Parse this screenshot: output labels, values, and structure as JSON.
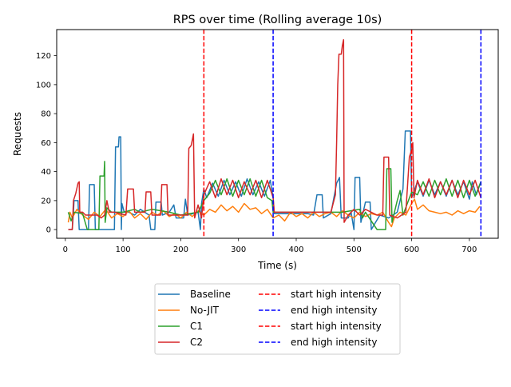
{
  "chart_data": {
    "type": "line",
    "title": "RPS over time (Rolling average 10s)",
    "xlabel": "Time (s)",
    "ylabel": "Requests",
    "xlim": [
      -15,
      750
    ],
    "ylim": [
      -6,
      138
    ],
    "xticks": [
      0,
      100,
      200,
      300,
      400,
      500,
      600,
      700
    ],
    "yticks": [
      0,
      20,
      40,
      60,
      80,
      100,
      120
    ],
    "grid": false,
    "legend": {
      "placement": "below",
      "columns": 2
    },
    "series": [
      {
        "name": "Baseline",
        "color": "#1f77b4",
        "points": [
          [
            5,
            0
          ],
          [
            12,
            0
          ],
          [
            14,
            12
          ],
          [
            15,
            20
          ],
          [
            22,
            20
          ],
          [
            24,
            0
          ],
          [
            40,
            0
          ],
          [
            42,
            31
          ],
          [
            50,
            31
          ],
          [
            52,
            0
          ],
          [
            85,
            0
          ],
          [
            87,
            57
          ],
          [
            92,
            57
          ],
          [
            93,
            64
          ],
          [
            96,
            64
          ],
          [
            97,
            0
          ],
          [
            98,
            18
          ],
          [
            102,
            12
          ],
          [
            110,
            12
          ],
          [
            120,
            10
          ],
          [
            130,
            14
          ],
          [
            145,
            10
          ],
          [
            148,
            0
          ],
          [
            155,
            0
          ],
          [
            157,
            19
          ],
          [
            166,
            19
          ],
          [
            168,
            10
          ],
          [
            180,
            12
          ],
          [
            188,
            17
          ],
          [
            192,
            8
          ],
          [
            205,
            8
          ],
          [
            208,
            21
          ],
          [
            212,
            10
          ],
          [
            230,
            12
          ],
          [
            234,
            0
          ],
          [
            236,
            18
          ],
          [
            240,
            28
          ],
          [
            245,
            22
          ],
          [
            255,
            32
          ],
          [
            265,
            23
          ],
          [
            275,
            34
          ],
          [
            285,
            24
          ],
          [
            295,
            33
          ],
          [
            305,
            23
          ],
          [
            315,
            35
          ],
          [
            325,
            24
          ],
          [
            335,
            33
          ],
          [
            345,
            23
          ],
          [
            355,
            34
          ],
          [
            360,
            22
          ],
          [
            362,
            11
          ],
          [
            420,
            11
          ],
          [
            430,
            10
          ],
          [
            436,
            24
          ],
          [
            445,
            24
          ],
          [
            447,
            8
          ],
          [
            460,
            11
          ],
          [
            470,
            32
          ],
          [
            475,
            36
          ],
          [
            478,
            8
          ],
          [
            490,
            8
          ],
          [
            495,
            12
          ],
          [
            500,
            0
          ],
          [
            502,
            36
          ],
          [
            510,
            36
          ],
          [
            512,
            5
          ],
          [
            520,
            19
          ],
          [
            528,
            19
          ],
          [
            530,
            0
          ],
          [
            545,
            10
          ],
          [
            560,
            8
          ],
          [
            575,
            12
          ],
          [
            585,
            28
          ],
          [
            589,
            68
          ],
          [
            598,
            68
          ],
          [
            600,
            22
          ],
          [
            610,
            33
          ],
          [
            620,
            23
          ],
          [
            630,
            34
          ],
          [
            640,
            24
          ],
          [
            650,
            33
          ],
          [
            660,
            23
          ],
          [
            670,
            34
          ],
          [
            680,
            24
          ],
          [
            690,
            33
          ],
          [
            700,
            21
          ],
          [
            705,
            33
          ],
          [
            712,
            24
          ],
          [
            720,
            33
          ]
        ]
      },
      {
        "name": "No-JIT",
        "color": "#ff7f0e",
        "points": [
          [
            5,
            5
          ],
          [
            8,
            12
          ],
          [
            12,
            8
          ],
          [
            20,
            14
          ],
          [
            30,
            10
          ],
          [
            40,
            7
          ],
          [
            50,
            12
          ],
          [
            60,
            9
          ],
          [
            70,
            14
          ],
          [
            80,
            8
          ],
          [
            90,
            11
          ],
          [
            100,
            9
          ],
          [
            110,
            13
          ],
          [
            120,
            8
          ],
          [
            130,
            11
          ],
          [
            140,
            7
          ],
          [
            150,
            12
          ],
          [
            160,
            10
          ],
          [
            170,
            13
          ],
          [
            180,
            9
          ],
          [
            190,
            11
          ],
          [
            200,
            8
          ],
          [
            210,
            12
          ],
          [
            220,
            9
          ],
          [
            230,
            13
          ],
          [
            240,
            10
          ],
          [
            250,
            14
          ],
          [
            260,
            12
          ],
          [
            270,
            17
          ],
          [
            280,
            13
          ],
          [
            290,
            16
          ],
          [
            300,
            12
          ],
          [
            310,
            18
          ],
          [
            320,
            14
          ],
          [
            330,
            15
          ],
          [
            340,
            11
          ],
          [
            350,
            14
          ],
          [
            360,
            8
          ],
          [
            370,
            10
          ],
          [
            380,
            6
          ],
          [
            390,
            12
          ],
          [
            400,
            9
          ],
          [
            410,
            11
          ],
          [
            420,
            8
          ],
          [
            430,
            12
          ],
          [
            440,
            9
          ],
          [
            450,
            11
          ],
          [
            460,
            12
          ],
          [
            470,
            9
          ],
          [
            480,
            13
          ],
          [
            490,
            10
          ],
          [
            500,
            8
          ],
          [
            510,
            12
          ],
          [
            520,
            9
          ],
          [
            530,
            11
          ],
          [
            540,
            10
          ],
          [
            550,
            12
          ],
          [
            560,
            5
          ],
          [
            565,
            2
          ],
          [
            570,
            8
          ],
          [
            580,
            12
          ],
          [
            590,
            10
          ],
          [
            600,
            18
          ],
          [
            605,
            21
          ],
          [
            610,
            14
          ],
          [
            620,
            17
          ],
          [
            630,
            13
          ],
          [
            640,
            12
          ],
          [
            650,
            11
          ],
          [
            660,
            12
          ],
          [
            670,
            10
          ],
          [
            680,
            13
          ],
          [
            690,
            11
          ],
          [
            700,
            13
          ],
          [
            710,
            12
          ],
          [
            718,
            16
          ]
        ]
      },
      {
        "name": "C1",
        "color": "#2ca02c",
        "points": [
          [
            5,
            12
          ],
          [
            10,
            6
          ],
          [
            15,
            12
          ],
          [
            30,
            11
          ],
          [
            38,
            0
          ],
          [
            58,
            0
          ],
          [
            60,
            37
          ],
          [
            67,
            37
          ],
          [
            68,
            47
          ],
          [
            69,
            5
          ],
          [
            72,
            15
          ],
          [
            80,
            12
          ],
          [
            100,
            12
          ],
          [
            120,
            14
          ],
          [
            130,
            12
          ],
          [
            150,
            14
          ],
          [
            180,
            12
          ],
          [
            200,
            10
          ],
          [
            230,
            12
          ],
          [
            240,
            20
          ],
          [
            250,
            25
          ],
          [
            260,
            34
          ],
          [
            270,
            24
          ],
          [
            280,
            35
          ],
          [
            290,
            23
          ],
          [
            300,
            34
          ],
          [
            310,
            24
          ],
          [
            320,
            35
          ],
          [
            330,
            23
          ],
          [
            340,
            34
          ],
          [
            350,
            22
          ],
          [
            358,
            20
          ],
          [
            360,
            12
          ],
          [
            400,
            12
          ],
          [
            450,
            12
          ],
          [
            480,
            12
          ],
          [
            510,
            14
          ],
          [
            515,
            8
          ],
          [
            520,
            12
          ],
          [
            530,
            6
          ],
          [
            540,
            0
          ],
          [
            555,
            0
          ],
          [
            557,
            42
          ],
          [
            564,
            42
          ],
          [
            566,
            5
          ],
          [
            575,
            20
          ],
          [
            580,
            27
          ],
          [
            585,
            10
          ],
          [
            600,
            26
          ],
          [
            610,
            24
          ],
          [
            620,
            33
          ],
          [
            630,
            23
          ],
          [
            640,
            34
          ],
          [
            650,
            24
          ],
          [
            660,
            35
          ],
          [
            670,
            23
          ],
          [
            680,
            34
          ],
          [
            690,
            22
          ],
          [
            700,
            34
          ],
          [
            710,
            23
          ],
          [
            720,
            33
          ]
        ]
      },
      {
        "name": "C2",
        "color": "#d62728",
        "points": [
          [
            5,
            0
          ],
          [
            12,
            0
          ],
          [
            14,
            20
          ],
          [
            18,
            25
          ],
          [
            22,
            32
          ],
          [
            24,
            33
          ],
          [
            25,
            12
          ],
          [
            30,
            12
          ],
          [
            35,
            10
          ],
          [
            55,
            10
          ],
          [
            62,
            8
          ],
          [
            68,
            10
          ],
          [
            72,
            20
          ],
          [
            76,
            12
          ],
          [
            85,
            12
          ],
          [
            105,
            10
          ],
          [
            108,
            28
          ],
          [
            118,
            28
          ],
          [
            120,
            12
          ],
          [
            138,
            12
          ],
          [
            140,
            26
          ],
          [
            148,
            26
          ],
          [
            150,
            10
          ],
          [
            165,
            10
          ],
          [
            167,
            31
          ],
          [
            176,
            31
          ],
          [
            178,
            10
          ],
          [
            200,
            10
          ],
          [
            212,
            10
          ],
          [
            214,
            56
          ],
          [
            218,
            58
          ],
          [
            220,
            62
          ],
          [
            222,
            66
          ],
          [
            224,
            8
          ],
          [
            230,
            17
          ],
          [
            236,
            8
          ],
          [
            240,
            24
          ],
          [
            250,
            33
          ],
          [
            260,
            22
          ],
          [
            270,
            35
          ],
          [
            280,
            24
          ],
          [
            290,
            34
          ],
          [
            300,
            22
          ],
          [
            310,
            33
          ],
          [
            320,
            24
          ],
          [
            330,
            34
          ],
          [
            340,
            22
          ],
          [
            350,
            34
          ],
          [
            360,
            22
          ],
          [
            362,
            12
          ],
          [
            460,
            12
          ],
          [
            468,
            24
          ],
          [
            470,
            60
          ],
          [
            472,
            100
          ],
          [
            474,
            121
          ],
          [
            478,
            121
          ],
          [
            480,
            127
          ],
          [
            482,
            131
          ],
          [
            483,
            5
          ],
          [
            490,
            10
          ],
          [
            500,
            14
          ],
          [
            510,
            10
          ],
          [
            520,
            14
          ],
          [
            540,
            10
          ],
          [
            550,
            10
          ],
          [
            552,
            50
          ],
          [
            560,
            50
          ],
          [
            562,
            10
          ],
          [
            575,
            8
          ],
          [
            590,
            12
          ],
          [
            596,
            50
          ],
          [
            600,
            55
          ],
          [
            602,
            60
          ],
          [
            604,
            22
          ],
          [
            610,
            34
          ],
          [
            620,
            24
          ],
          [
            630,
            35
          ],
          [
            640,
            22
          ],
          [
            650,
            33
          ],
          [
            660,
            24
          ],
          [
            670,
            34
          ],
          [
            680,
            22
          ],
          [
            690,
            34
          ],
          [
            700,
            24
          ],
          [
            710,
            34
          ],
          [
            720,
            22
          ]
        ]
      }
    ],
    "vlines": [
      {
        "name": "start high intensity",
        "x": 240,
        "color": "#ff0000"
      },
      {
        "name": "end high intensity",
        "x": 360,
        "color": "#0000ff"
      },
      {
        "name": "start high intensity",
        "x": 600,
        "color": "#ff0000"
      },
      {
        "name": "end high intensity",
        "x": 720,
        "color": "#0000ff"
      }
    ]
  }
}
